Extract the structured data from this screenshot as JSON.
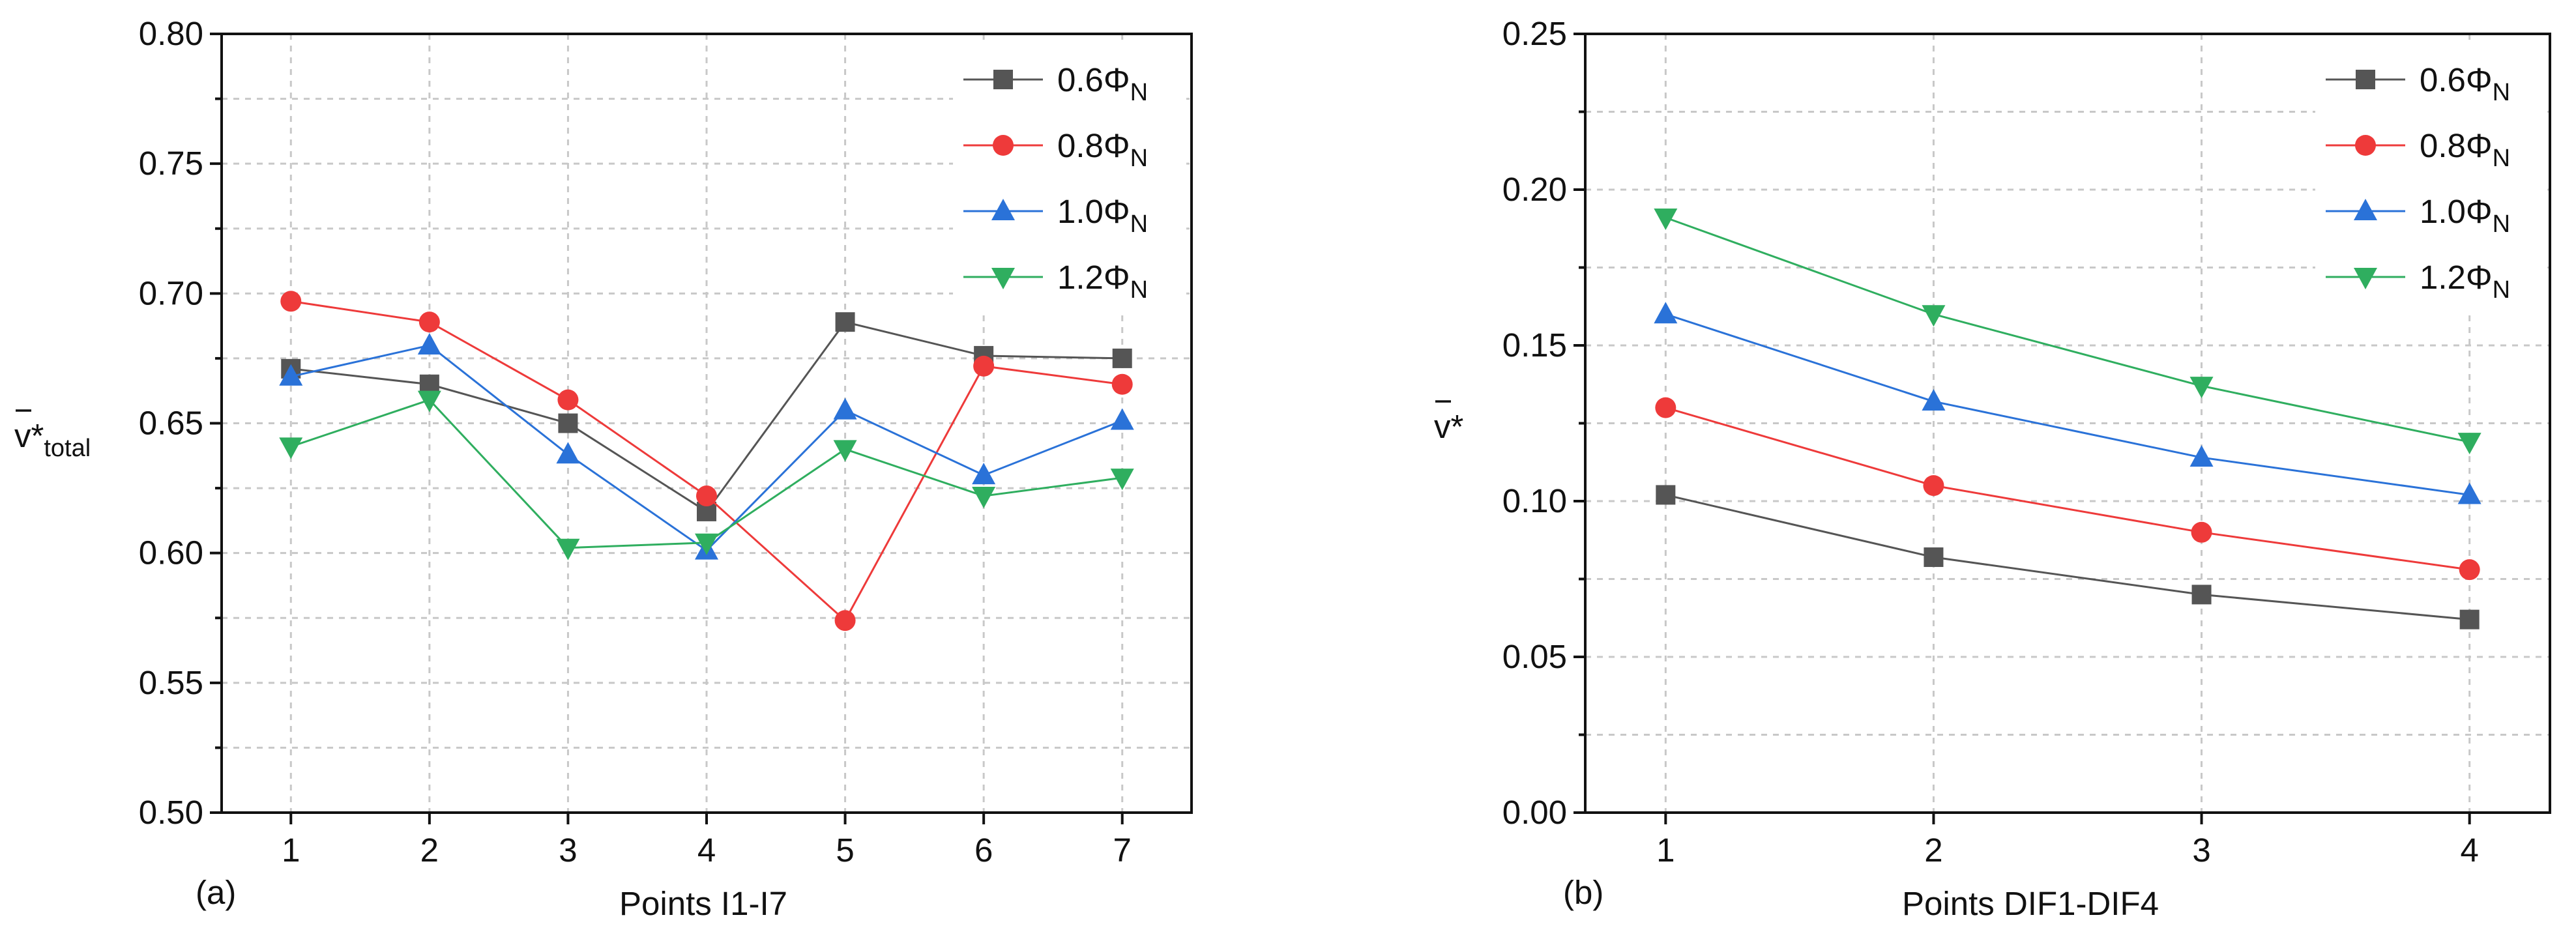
{
  "chart_data": [
    {
      "type": "line",
      "panel_label": "(a)",
      "xlabel": "Points I1-I7",
      "ylabel": {
        "main": "v*",
        "sub": "total"
      },
      "categories": [
        "1",
        "2",
        "3",
        "4",
        "5",
        "6",
        "7"
      ],
      "x": [
        1,
        2,
        3,
        4,
        5,
        6,
        7
      ],
      "xlim": [
        0.5,
        7.5
      ],
      "ylim": [
        0.5,
        0.8
      ],
      "yticks": [
        "0.50",
        "0.55",
        "0.60",
        "0.65",
        "0.70",
        "0.75",
        "0.80"
      ],
      "grid": true,
      "legend_position": "top-right",
      "series": [
        {
          "name": "0.6Φ",
          "name_sub": "N",
          "color": "#555555",
          "marker": "square",
          "values": [
            0.671,
            0.665,
            0.65,
            0.616,
            0.689,
            0.676,
            0.675
          ]
        },
        {
          "name": "0.8Φ",
          "name_sub": "N",
          "color": "#ee3a3a",
          "marker": "circle",
          "values": [
            0.697,
            0.689,
            0.659,
            0.622,
            0.574,
            0.672,
            0.665
          ]
        },
        {
          "name": "1.0Φ",
          "name_sub": "N",
          "color": "#2a72d8",
          "marker": "triangle-up",
          "values": [
            0.668,
            0.68,
            0.638,
            0.601,
            0.655,
            0.63,
            0.651
          ]
        },
        {
          "name": "1.2Φ",
          "name_sub": "N",
          "color": "#2fae5f",
          "marker": "triangle-down",
          "values": [
            0.641,
            0.659,
            0.602,
            0.604,
            0.64,
            0.622,
            0.629
          ]
        }
      ]
    },
    {
      "type": "line",
      "panel_label": "(b)",
      "xlabel": "Points DIF1-DIF4",
      "ylabel": {
        "main": "v*",
        "sub": ""
      },
      "categories": [
        "1",
        "2",
        "3",
        "4"
      ],
      "x": [
        1,
        2,
        3,
        4
      ],
      "xlim": [
        0.7,
        4.3
      ],
      "ylim": [
        0.0,
        0.25
      ],
      "yticks": [
        "0.00",
        "0.05",
        "0.10",
        "0.15",
        "0.20",
        "0.25"
      ],
      "grid": true,
      "legend_position": "top-right",
      "series": [
        {
          "name": "0.6Φ",
          "name_sub": "N",
          "color": "#555555",
          "marker": "square",
          "values": [
            0.102,
            0.082,
            0.07,
            0.062
          ]
        },
        {
          "name": "0.8Φ",
          "name_sub": "N",
          "color": "#ee3a3a",
          "marker": "circle",
          "values": [
            0.13,
            0.105,
            0.09,
            0.078
          ]
        },
        {
          "name": "1.0Φ",
          "name_sub": "N",
          "color": "#2a72d8",
          "marker": "triangle-up",
          "values": [
            0.16,
            0.132,
            0.114,
            0.102
          ]
        },
        {
          "name": "1.2Φ",
          "name_sub": "N",
          "color": "#2fae5f",
          "marker": "triangle-down",
          "values": [
            0.191,
            0.16,
            0.137,
            0.119
          ]
        }
      ]
    }
  ]
}
